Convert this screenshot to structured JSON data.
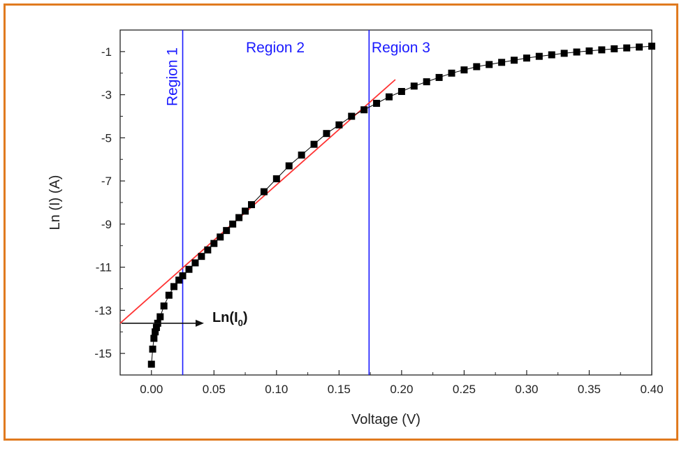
{
  "colors": {
    "frame": "#e07a1f",
    "markers": "#000000",
    "fit_line": "#ff3333",
    "region_lines": "#1a1aff",
    "region_text": "#1a1aff"
  },
  "chart_data": {
    "type": "scatter",
    "xlabel": "Voltage (V)",
    "ylabel": "Ln (I) (A)",
    "xlim": [
      -0.025,
      0.4
    ],
    "ylim": [
      -16.0,
      0.0
    ],
    "xticks": [
      0.0,
      0.05,
      0.1,
      0.15,
      0.2,
      0.25,
      0.3,
      0.35,
      0.4
    ],
    "xtick_labels": [
      "0.00",
      "0.05",
      "0.10",
      "0.15",
      "0.20",
      "0.25",
      "0.30",
      "0.35",
      "0.40"
    ],
    "yticks": [
      -1,
      -3,
      -5,
      -7,
      -9,
      -11,
      -13,
      -15
    ],
    "ytick_labels": [
      "-1",
      "-3",
      "-5",
      "-7",
      "-9",
      "-11",
      "-13",
      "-15"
    ],
    "grid": false,
    "series": [
      {
        "marker": "square",
        "x": [
          0.0,
          0.001,
          0.002,
          0.003,
          0.004,
          0.005,
          0.007,
          0.01,
          0.014,
          0.018,
          0.022,
          0.025,
          0.03,
          0.035,
          0.04,
          0.045,
          0.05,
          0.055,
          0.06,
          0.065,
          0.07,
          0.075,
          0.08,
          0.09,
          0.1,
          0.11,
          0.12,
          0.13,
          0.14,
          0.15,
          0.16,
          0.17,
          0.18,
          0.19,
          0.2,
          0.21,
          0.22,
          0.23,
          0.24,
          0.25,
          0.26,
          0.27,
          0.28,
          0.29,
          0.3,
          0.31,
          0.32,
          0.33,
          0.34,
          0.35,
          0.36,
          0.37,
          0.38,
          0.39,
          0.4
        ],
        "y": [
          -15.5,
          -14.8,
          -14.3,
          -14.0,
          -13.8,
          -13.6,
          -13.3,
          -12.8,
          -12.3,
          -11.9,
          -11.6,
          -11.4,
          -11.1,
          -10.8,
          -10.5,
          -10.2,
          -9.9,
          -9.6,
          -9.3,
          -9.0,
          -8.7,
          -8.4,
          -8.1,
          -7.5,
          -6.9,
          -6.3,
          -5.8,
          -5.3,
          -4.8,
          -4.4,
          -4.0,
          -3.7,
          -3.4,
          -3.1,
          -2.85,
          -2.6,
          -2.4,
          -2.2,
          -2.0,
          -1.85,
          -1.7,
          -1.6,
          -1.5,
          -1.4,
          -1.3,
          -1.22,
          -1.15,
          -1.08,
          -1.02,
          -0.97,
          -0.92,
          -0.87,
          -0.83,
          -0.79,
          -0.75
        ]
      }
    ],
    "fit_line": {
      "x": [
        -0.025,
        0.195
      ],
      "y": [
        -13.6,
        -2.3
      ]
    },
    "region_lines_x": [
      0.025,
      0.174
    ],
    "region_labels": [
      "Region 1",
      "Region 2",
      "Region 3"
    ],
    "annotation": {
      "text": "Ln(I",
      "subscript": "0",
      "suffix": ")",
      "y": -13.6,
      "arrow_x": [
        -0.025,
        0.042
      ]
    }
  }
}
